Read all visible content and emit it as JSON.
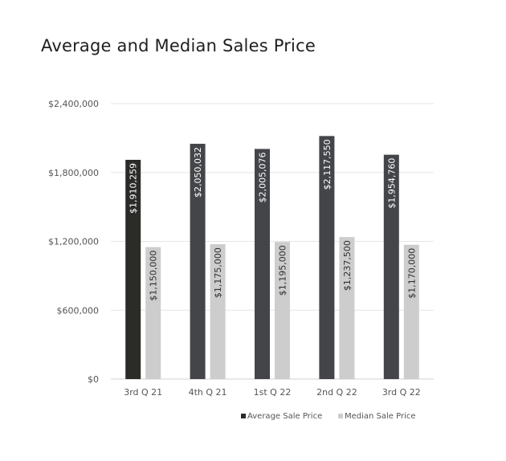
{
  "chart_data": {
    "type": "bar",
    "title": "Average and Median Sales Price",
    "categories": [
      "3rd Q 21",
      "4th Q 21",
      "1st Q 22",
      "2nd Q 22",
      "3rd Q 22"
    ],
    "series": [
      {
        "name": "Average Sale Price",
        "values": [
          1910259,
          2050032,
          2005076,
          2117550,
          1954760
        ],
        "labels": [
          "$1,910,259",
          "$2,050,032",
          "$2,005,076",
          "$2,117,550",
          "$1,954,760"
        ],
        "colors": [
          "#2b2c28",
          "#434549",
          "#434549",
          "#434549",
          "#434549"
        ]
      },
      {
        "name": "Median Sale Price",
        "values": [
          1150000,
          1175000,
          1195000,
          1237500,
          1170000
        ],
        "labels": [
          "$1,150,000",
          "$1,175,000",
          "$1,195,000",
          "$1,237,500",
          "$1,170,000"
        ],
        "colors": [
          "#cdcdcd",
          "#cdcdcd",
          "#cdcdcd",
          "#cdcdcd",
          "#cdcdcd"
        ]
      }
    ],
    "ylim": [
      0,
      2400000
    ],
    "yticks": [
      0,
      600000,
      1200000,
      1800000,
      2400000
    ],
    "ytick_labels": [
      "$0",
      "$600,000",
      "$1,200,000",
      "$1,800,000",
      "$2,400,000"
    ],
    "grid": true,
    "legend_position": "bottom-right",
    "legend": {
      "average_label": "Average Sale Price",
      "median_label": "Median Sale Price",
      "average_color": "#2b2c28",
      "median_color": "#cdcdcd"
    }
  }
}
